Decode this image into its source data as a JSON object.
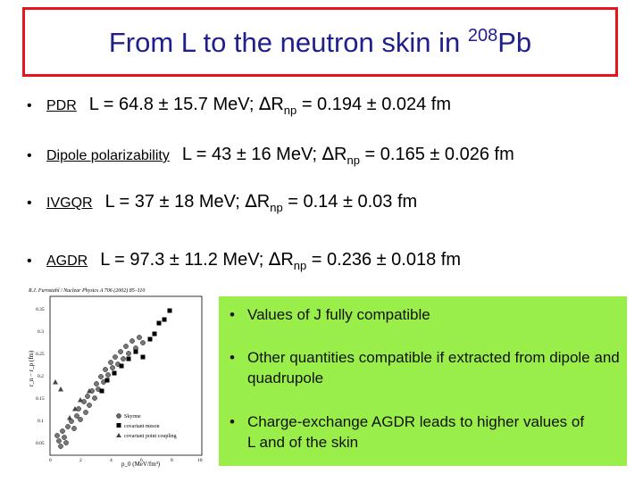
{
  "title": {
    "main": "From L to the neutron skin in ",
    "superscript": "208",
    "element": "Pb"
  },
  "bullets": [
    {
      "label": "PDR",
      "prefix": "L = 64.8 ± 15.7 MeV;  ",
      "delta": "∆",
      "r": "R",
      "sub": "np",
      "suffix": " = 0.194 ± 0.024 fm"
    },
    {
      "label": "Dipole polarizability",
      "prefix": "L = 43 ± 16 MeV; ",
      "delta": "∆",
      "r": "R",
      "sub": "np",
      "suffix": " = 0.165 ± 0.026 fm"
    },
    {
      "label": "IVGQR",
      "prefix": "L = 37 ± 18 MeV; ",
      "delta": "∆",
      "r": "R",
      "sub": "np",
      "suffix": " = 0.14 ± 0.03 fm"
    },
    {
      "label": "AGDR",
      "prefix": "L = 97.3 ± 11.2 MeV; ",
      "delta": "∆",
      "r": "R",
      "sub": "np",
      "suffix": " = 0.236 ± 0.018 fm"
    }
  ],
  "figure": {
    "citation": "R.J. Furnstahl / Nuclear Physics A 706 (2002) 85–110",
    "y_axis_label": "r_n − r_p (fm)",
    "x_axis_label": "p_0 (MeV/fm³)",
    "y_ticks": [
      "0.35",
      "0.3",
      "0.25",
      "0.2",
      "0.15",
      "0.1",
      "0.05"
    ],
    "x_ticks": [
      "0",
      "2",
      "4",
      "6",
      "8",
      "10"
    ],
    "legend": [
      "Skyrme",
      "covariant meson",
      "covariant point coupling"
    ]
  },
  "notes": [
    "Values of J fully compatible",
    "Other quantities compatible if extracted from dipole and quadrupole",
    "Charge-exchange AGDR leads to higher values of L and of the skin"
  ],
  "colors": {
    "title": "#1f1f8c",
    "title_border": "#e8141c",
    "notes_background": "#99ee4a"
  }
}
